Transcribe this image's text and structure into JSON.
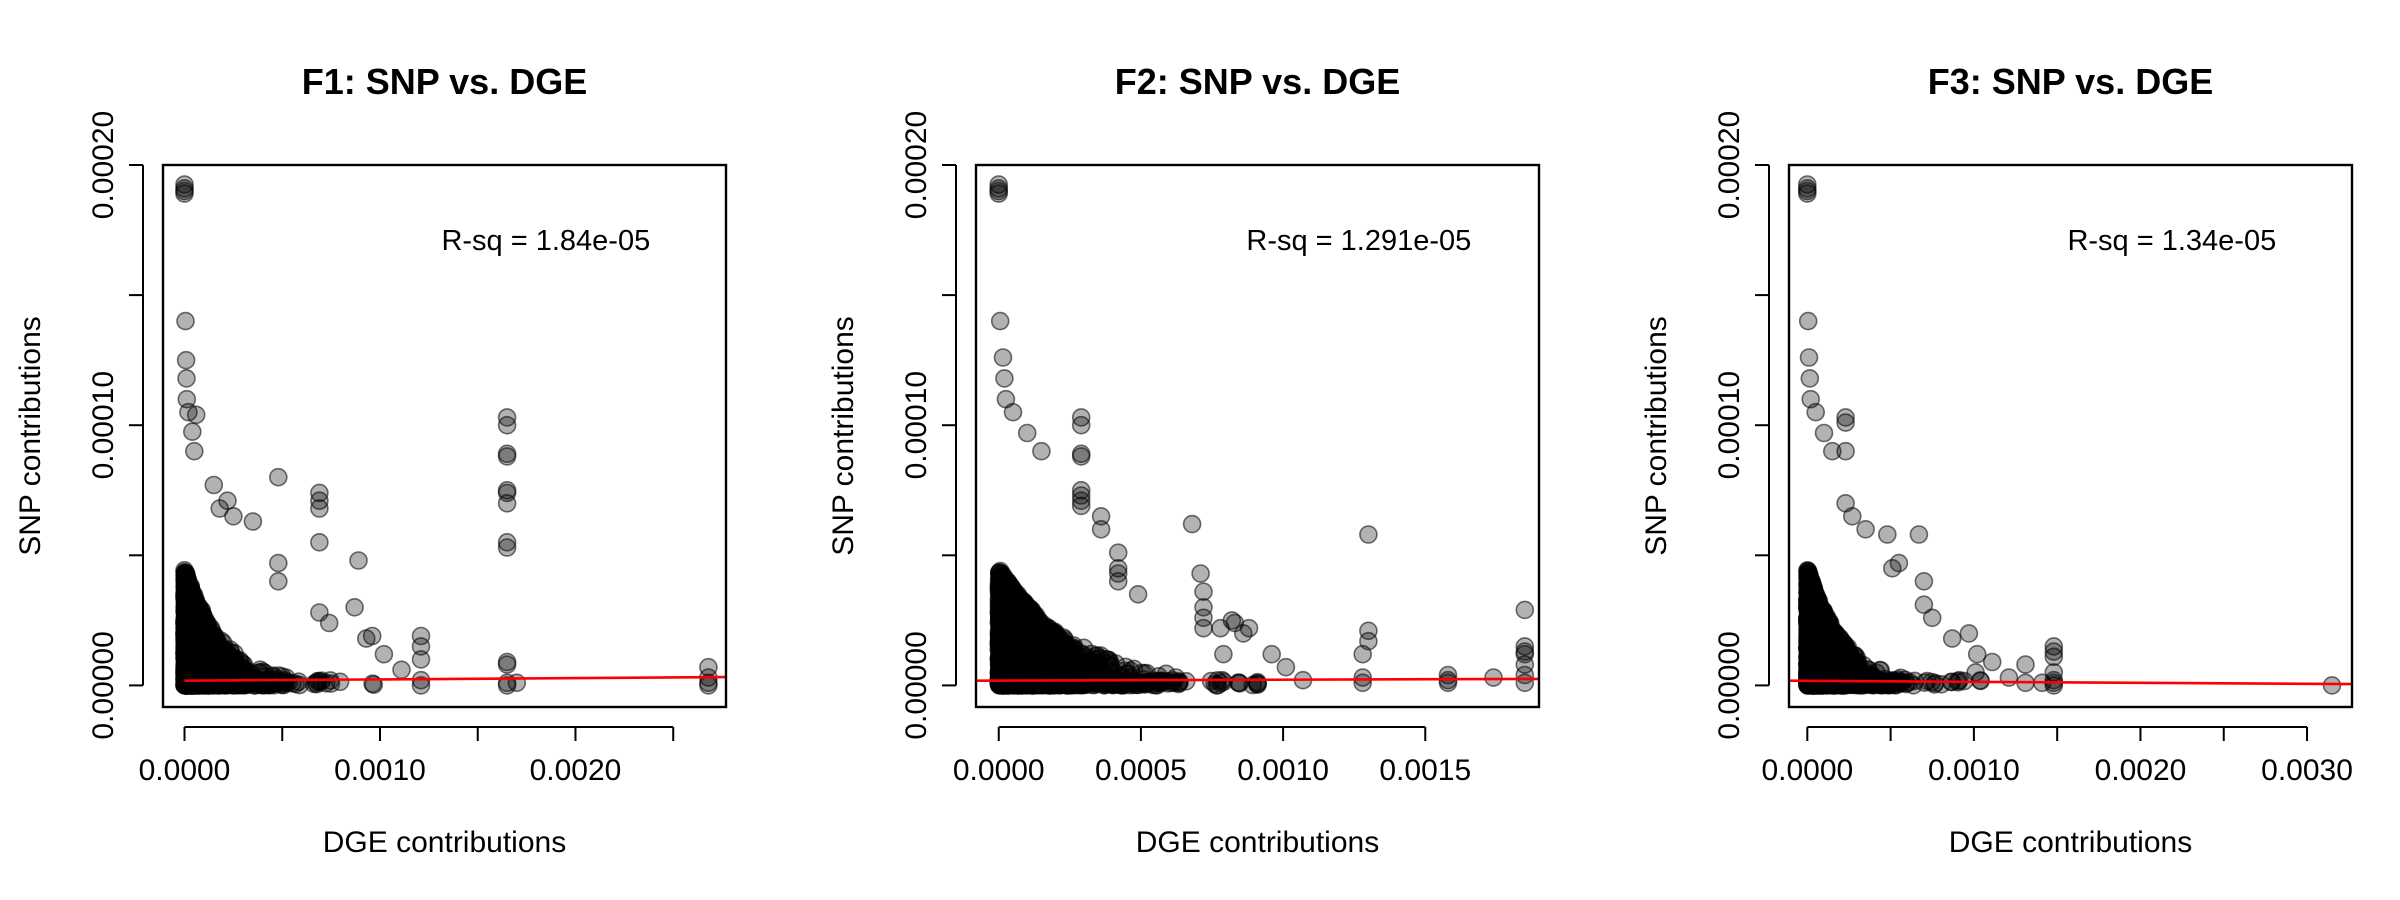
{
  "figure": {
    "background": "#ffffff"
  },
  "chart_data": [
    {
      "type": "scatter",
      "title": "F1: SNP vs. DGE",
      "xlabel": "DGE contributions",
      "ylabel": "SNP contributions",
      "annotation": "R-sq = 1.84e-05",
      "xlim": [
        -0.00011,
        0.00277
      ],
      "ylim": [
        -8.3e-06,
        0.0002
      ],
      "xticks": [
        0,
        0.0005,
        0.001,
        0.0015,
        0.002,
        0.0025
      ],
      "xtick_labels": [
        "0.0000",
        "",
        "0.0010",
        "",
        "0.0020",
        ""
      ],
      "yticks": [
        0,
        5e-05,
        0.0001,
        0.00015,
        0.0002
      ],
      "ytick_labels": [
        "0.00000",
        "",
        "0.00010",
        "",
        "0.00020"
      ],
      "point_color": "#000000",
      "point_alpha": 0.3,
      "fit_color": "#ff0000",
      "fit_line": [
        [
          0,
          1.8e-06
        ],
        [
          0.00277,
          3.2e-06
        ]
      ],
      "cloud": {
        "x_scale": 9e-05,
        "y_scale": 4.5e-05,
        "x_max": 0.0009,
        "n": 2400
      },
      "points": [
        [
          0,
          0.00019
        ],
        [
          0,
          0.0001925
        ],
        [
          0,
          0.000189
        ],
        [
          0,
          0.000191
        ],
        [
          5e-06,
          0.00014
        ],
        [
          8e-06,
          0.000125
        ],
        [
          1e-05,
          0.000118
        ],
        [
          1.2e-05,
          0.00011
        ],
        [
          2e-05,
          0.000105
        ],
        [
          6e-05,
          0.000104
        ],
        [
          4e-05,
          9.75e-05
        ],
        [
          5e-05,
          9e-05
        ],
        [
          0.00015,
          7.7e-05
        ],
        [
          0.00018,
          6.8e-05
        ],
        [
          0.00022,
          7.1e-05
        ],
        [
          0.00025,
          6.5e-05
        ],
        [
          0.00035,
          6.3e-05
        ],
        [
          0.00048,
          8e-05
        ],
        [
          0.00048,
          4.7e-05
        ],
        [
          0.00048,
          4e-05
        ],
        [
          0.00069,
          7.4e-05
        ],
        [
          0.00069,
          7.1e-05
        ],
        [
          0.00069,
          6.8e-05
        ],
        [
          0.00069,
          5.5e-05
        ],
        [
          0.00069,
          2.8e-05
        ],
        [
          0.00074,
          2.4e-05
        ],
        [
          0.00087,
          3e-05
        ],
        [
          0.00089,
          4.8e-05
        ],
        [
          0.00093,
          1.8e-05
        ],
        [
          0.00096,
          1.9e-05
        ],
        [
          0.00102,
          1.2e-05
        ],
        [
          0.00111,
          6e-06
        ],
        [
          0.00121,
          1.9e-05
        ],
        [
          0.00121,
          1.5e-05
        ],
        [
          0.00121,
          1e-05
        ],
        [
          0.00121,
          2e-06
        ],
        [
          0.00121,
          0
        ],
        [
          0.00165,
          0.000103
        ],
        [
          0.00165,
          0.0001
        ],
        [
          0.00165,
          8.9e-05
        ],
        [
          0.00165,
          8.8e-05
        ],
        [
          0.00165,
          7.5e-05
        ],
        [
          0.00165,
          7.4e-05
        ],
        [
          0.00165,
          7e-05
        ],
        [
          0.00165,
          5.5e-05
        ],
        [
          0.00165,
          5.3e-05
        ],
        [
          0.00165,
          9e-06
        ],
        [
          0.00165,
          8e-06
        ],
        [
          0.00165,
          1e-06
        ],
        [
          0.00165,
          0
        ],
        [
          0.0017,
          1e-06
        ],
        [
          0.00268,
          7e-06
        ],
        [
          0.00268,
          3e-06
        ],
        [
          0.00268,
          1e-06
        ],
        [
          0.00268,
          0
        ]
      ]
    },
    {
      "type": "scatter",
      "title": "F2: SNP vs. DGE",
      "xlabel": "DGE contributions",
      "ylabel": "SNP contributions",
      "annotation": "R-sq = 1.291e-05",
      "xlim": [
        -8e-05,
        0.0019
      ],
      "ylim": [
        -8.3e-06,
        0.0002
      ],
      "xticks": [
        0,
        0.0005,
        0.001,
        0.0015
      ],
      "xtick_labels": [
        "0.0000",
        "0.0005",
        "0.0010",
        "0.0015"
      ],
      "yticks": [
        0,
        5e-05,
        0.0001,
        0.00015,
        0.0002
      ],
      "ytick_labels": [
        "0.00000",
        "",
        "0.00010",
        "",
        "0.00020"
      ],
      "point_color": "#000000",
      "point_alpha": 0.3,
      "fit_color": "#ff0000",
      "fit_line": [
        [
          -8e-05,
          1.8e-06
        ],
        [
          0.0019,
          2.5e-06
        ]
      ],
      "cloud": {
        "x_scale": 0.00012,
        "y_scale": 4.5e-05,
        "x_max": 0.0007,
        "n": 2400
      },
      "points": [
        [
          0,
          0.00019
        ],
        [
          0,
          0.0001925
        ],
        [
          0,
          0.000189
        ],
        [
          0,
          0.000191
        ],
        [
          5e-06,
          0.00014
        ],
        [
          1.5e-05,
          0.000126
        ],
        [
          2e-05,
          0.000118
        ],
        [
          2.5e-05,
          0.00011
        ],
        [
          5e-05,
          0.000105
        ],
        [
          0.0001,
          9.7e-05
        ],
        [
          0.00015,
          9e-05
        ],
        [
          0.00029,
          0.000103
        ],
        [
          0.00029,
          0.0001
        ],
        [
          0.00029,
          8.9e-05
        ],
        [
          0.00029,
          8.8e-05
        ],
        [
          0.00029,
          7.5e-05
        ],
        [
          0.00029,
          7.3e-05
        ],
        [
          0.00029,
          7.1e-05
        ],
        [
          0.00029,
          6.9e-05
        ],
        [
          0.00036,
          6.5e-05
        ],
        [
          0.00036,
          6e-05
        ],
        [
          0.00042,
          5.1e-05
        ],
        [
          0.00042,
          4.5e-05
        ],
        [
          0.00042,
          4.3e-05
        ],
        [
          0.00042,
          4e-05
        ],
        [
          0.00049,
          3.5e-05
        ],
        [
          0.00068,
          6.2e-05
        ],
        [
          0.00071,
          4.3e-05
        ],
        [
          0.00072,
          3.6e-05
        ],
        [
          0.00072,
          3e-05
        ],
        [
          0.00072,
          2.6e-05
        ],
        [
          0.00072,
          2.2e-05
        ],
        [
          0.00082,
          2.5e-05
        ],
        [
          0.00083,
          2.4e-05
        ],
        [
          0.00088,
          2.2e-05
        ],
        [
          0.00086,
          2e-05
        ],
        [
          0.00078,
          2.2e-05
        ],
        [
          0.00079,
          1.2e-05
        ],
        [
          0.00096,
          1.2e-05
        ],
        [
          0.00101,
          7e-06
        ],
        [
          0.00107,
          2e-06
        ],
        [
          0.00128,
          1.2e-05
        ],
        [
          0.0013,
          5.8e-05
        ],
        [
          0.0013,
          2.1e-05
        ],
        [
          0.0013,
          1.7e-05
        ],
        [
          0.00128,
          3e-06
        ],
        [
          0.00128,
          1e-06
        ],
        [
          0.00158,
          4e-06
        ],
        [
          0.00158,
          2e-06
        ],
        [
          0.00158,
          1e-06
        ],
        [
          0.00174,
          3e-06
        ],
        [
          0.00185,
          2.9e-05
        ],
        [
          0.00185,
          1.5e-05
        ],
        [
          0.00185,
          1.3e-05
        ],
        [
          0.00185,
          1.2e-05
        ],
        [
          0.00185,
          8e-06
        ],
        [
          0.00185,
          4e-06
        ],
        [
          0.00185,
          1e-06
        ]
      ]
    },
    {
      "type": "scatter",
      "title": "F3: SNP vs. DGE",
      "xlabel": "DGE contributions",
      "ylabel": "SNP contributions",
      "annotation": "R-sq = 1.34e-05",
      "xlim": [
        -0.00011,
        0.00327
      ],
      "ylim": [
        -8.3e-06,
        0.0002
      ],
      "xticks": [
        0,
        0.0005,
        0.001,
        0.0015,
        0.002,
        0.0025,
        0.003
      ],
      "xtick_labels": [
        "0.0000",
        "",
        "0.0010",
        "",
        "0.0020",
        "",
        "0.0030"
      ],
      "yticks": [
        0,
        5e-05,
        0.0001,
        0.00015,
        0.0002
      ],
      "ytick_labels": [
        "0.00000",
        "",
        "0.00010",
        "",
        "0.00020"
      ],
      "point_color": "#000000",
      "point_alpha": 0.3,
      "fit_color": "#ff0000",
      "fit_line": [
        [
          -0.00011,
          1.8e-06
        ],
        [
          0.00327,
          5e-07
        ]
      ],
      "cloud": {
        "x_scale": 0.0001,
        "y_scale": 4.5e-05,
        "x_max": 0.0008,
        "n": 2400
      },
      "points": [
        [
          0,
          0.00019
        ],
        [
          0,
          0.0001925
        ],
        [
          0,
          0.000189
        ],
        [
          0,
          0.000191
        ],
        [
          5e-06,
          0.00014
        ],
        [
          1e-05,
          0.000126
        ],
        [
          1.5e-05,
          0.000118
        ],
        [
          2e-05,
          0.00011
        ],
        [
          5e-05,
          0.000105
        ],
        [
          0.0001,
          9.7e-05
        ],
        [
          0.00015,
          9e-05
        ],
        [
          0.00023,
          0.000103
        ],
        [
          0.00023,
          0.000101
        ],
        [
          0.00023,
          9e-05
        ],
        [
          0.00023,
          7e-05
        ],
        [
          0.00027,
          6.5e-05
        ],
        [
          0.00035,
          6e-05
        ],
        [
          0.00048,
          5.8e-05
        ],
        [
          0.00051,
          4.5e-05
        ],
        [
          0.00055,
          4.7e-05
        ],
        [
          0.00067,
          5.8e-05
        ],
        [
          0.0007,
          4e-05
        ],
        [
          0.0007,
          3.1e-05
        ],
        [
          0.00075,
          2.6e-05
        ],
        [
          0.00087,
          1.8e-05
        ],
        [
          0.00097,
          2e-05
        ],
        [
          0.00102,
          1.2e-05
        ],
        [
          0.00101,
          5e-06
        ],
        [
          0.00111,
          9e-06
        ],
        [
          0.00121,
          3e-06
        ],
        [
          0.00131,
          8e-06
        ],
        [
          0.00148,
          1.5e-05
        ],
        [
          0.00148,
          1.3e-05
        ],
        [
          0.00148,
          1.1e-05
        ],
        [
          0.00148,
          5e-06
        ],
        [
          0.00148,
          2e-06
        ],
        [
          0.00148,
          1e-06
        ],
        [
          0.00148,
          0
        ],
        [
          0.00141,
          1e-06
        ],
        [
          0.00131,
          1e-06
        ],
        [
          0.00315,
          0
        ]
      ]
    }
  ]
}
